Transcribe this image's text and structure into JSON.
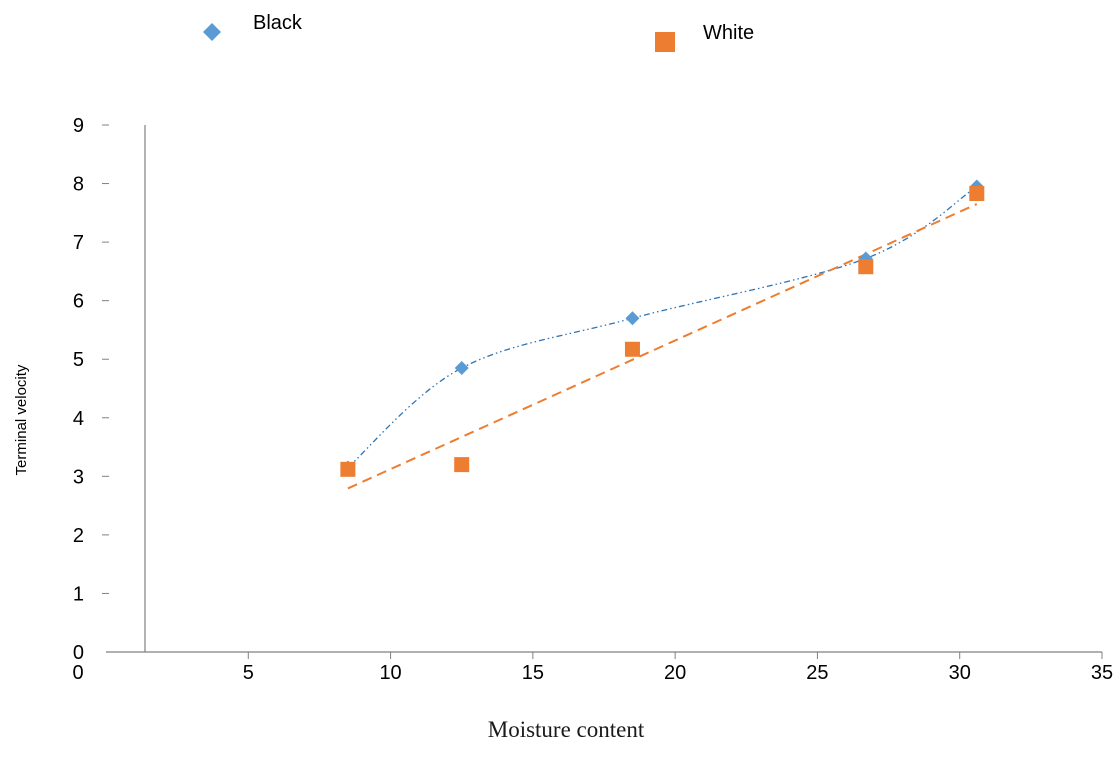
{
  "chart_data": {
    "type": "scatter",
    "title": "",
    "xlabel": "Moisture content",
    "ylabel": "Terminal velocity",
    "xlim": [
      0,
      35
    ],
    "ylim": [
      0,
      9
    ],
    "x_ticks": [
      0,
      5,
      10,
      15,
      20,
      25,
      30,
      35
    ],
    "y_ticks": [
      0,
      1,
      2,
      3,
      4,
      5,
      6,
      7,
      8,
      9
    ],
    "grid": false,
    "legend_position": "top",
    "series": [
      {
        "name": "Black",
        "marker": "diamond",
        "color": "#5b9bd5",
        "trendline": "dash-dot-dot smooth",
        "x": [
          8.5,
          12.5,
          18.5,
          26.7,
          30.6
        ],
        "y": [
          3.15,
          4.85,
          5.7,
          6.72,
          7.95
        ]
      },
      {
        "name": "White",
        "marker": "square",
        "color": "#ed7d31",
        "trendline": "dashed",
        "x": [
          8.5,
          12.5,
          18.5,
          26.7,
          30.6
        ],
        "y": [
          3.12,
          3.2,
          5.17,
          6.58,
          7.83
        ]
      }
    ]
  }
}
